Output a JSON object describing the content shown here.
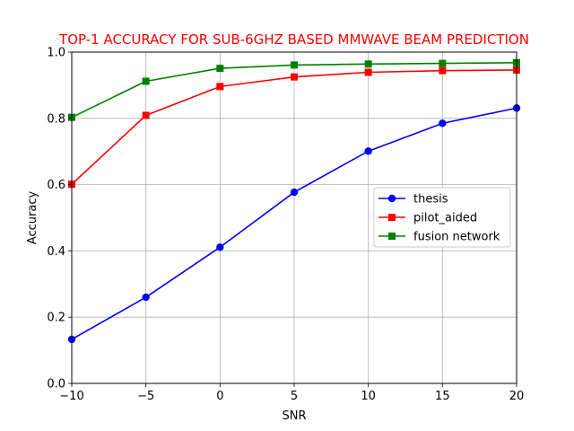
{
  "chart_data": {
    "type": "line",
    "title": "TOP-1 ACCURACY FOR SUB-6GHZ BASED MMWAVE BEAM PREDICTION",
    "title_color": "#ff0000",
    "xlabel": "SNR",
    "ylabel": "Accuracy",
    "xlim": [
      -10,
      20
    ],
    "ylim": [
      0.0,
      1.0
    ],
    "xticks": [
      -10,
      -5,
      0,
      5,
      10,
      15,
      20
    ],
    "xtick_labels": [
      "−10",
      "−5",
      "0",
      "5",
      "10",
      "15",
      "20"
    ],
    "yticks": [
      0.0,
      0.2,
      0.4,
      0.6,
      0.8,
      1.0
    ],
    "ytick_labels": [
      "0.0",
      "0.2",
      "0.4",
      "0.6",
      "0.8",
      "1.0"
    ],
    "grid": true,
    "legend_position": "center-right",
    "x": [
      -10,
      -5,
      0,
      5,
      10,
      15,
      20
    ],
    "series": [
      {
        "name": "thesis",
        "color": "#0000ff",
        "marker": "circle",
        "values": [
          0.133,
          0.26,
          0.411,
          0.577,
          0.701,
          0.785,
          0.831
        ]
      },
      {
        "name": "pilot_aided",
        "color": "#ff0000",
        "marker": "square",
        "values": [
          0.601,
          0.809,
          0.896,
          0.925,
          0.939,
          0.944,
          0.946
        ]
      },
      {
        "name": "fusion network",
        "color": "#008000",
        "marker": "square",
        "values": [
          0.803,
          0.912,
          0.951,
          0.961,
          0.964,
          0.966,
          0.968
        ]
      }
    ]
  }
}
